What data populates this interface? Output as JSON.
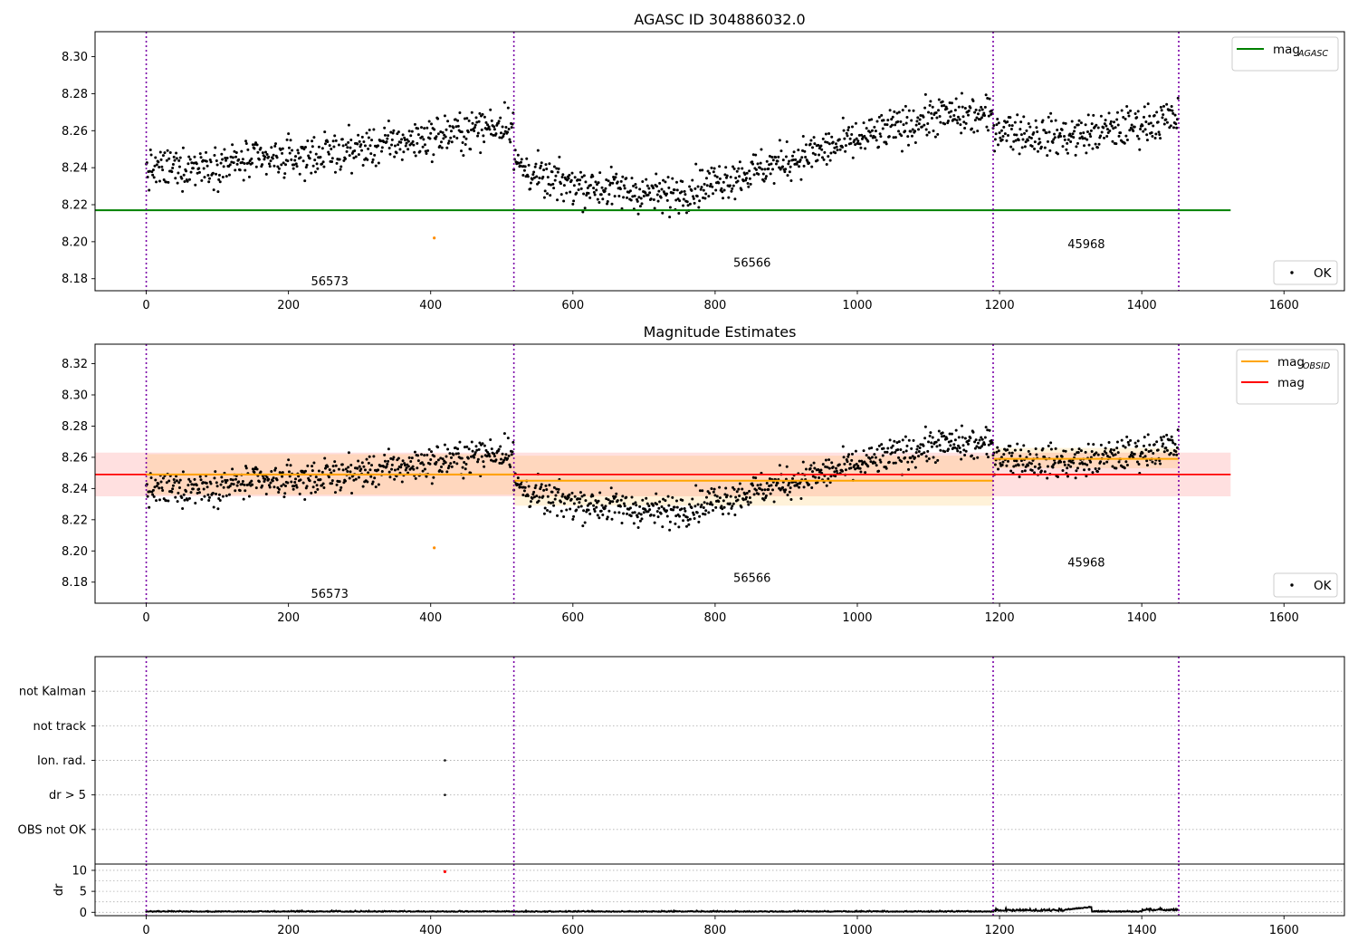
{
  "chart_data": [
    {
      "id": "top",
      "type": "scatter",
      "title": "AGASC ID 304886032.0",
      "xlabel": "",
      "ylabel": "",
      "xlim": [
        -72,
        1685
      ],
      "ylim": [
        8.1735,
        8.3135
      ],
      "x_ticks": [
        0,
        200,
        400,
        600,
        800,
        1000,
        1200,
        1400,
        1600
      ],
      "y_ticks": [
        8.18,
        8.2,
        8.22,
        8.24,
        8.26,
        8.28,
        8.3
      ],
      "obsid_boundaries": [
        0,
        517,
        1191,
        1452
      ],
      "obsid_labels": [
        {
          "text": "56573",
          "x": 258,
          "y": 8.179
        },
        {
          "text": "56566",
          "x": 852,
          "y": 8.189
        },
        {
          "text": "45968",
          "x": 1322,
          "y": 8.199
        }
      ],
      "lines": [
        {
          "name": "mag",
          "subscript": "AGASC",
          "color": "#008000",
          "x": [
            -72,
            1525
          ],
          "y": [
            8.217,
            8.217
          ]
        }
      ],
      "highlight_points": [
        {
          "x": 405,
          "y": 8.202,
          "color": "#ff8c00"
        }
      ],
      "scatter_series": {
        "name": "OK",
        "color": "#000000",
        "points_generated_from": "magnitude_profile",
        "n_points": 1452
      },
      "legend_upper": {
        "position": "upper right",
        "entries": [
          {
            "label": "mag",
            "subscript": "AGASC",
            "color": "#008000"
          }
        ]
      },
      "legend_lower": {
        "position": "lower right",
        "entries": [
          {
            "label": "OK",
            "color": "#000000"
          }
        ]
      }
    },
    {
      "id": "middle",
      "type": "scatter",
      "title": "Magnitude Estimates",
      "xlabel": "",
      "ylabel": "",
      "xlim": [
        -72,
        1685
      ],
      "ylim": [
        8.1665,
        8.3325
      ],
      "x_ticks": [
        0,
        200,
        400,
        600,
        800,
        1000,
        1200,
        1400,
        1600
      ],
      "y_ticks": [
        8.18,
        8.2,
        8.22,
        8.24,
        8.26,
        8.28,
        8.3,
        8.32
      ],
      "obsid_boundaries": [
        0,
        517,
        1191,
        1452
      ],
      "obsid_labels": [
        {
          "text": "56573",
          "x": 258,
          "y": 8.173
        },
        {
          "text": "56566",
          "x": 852,
          "y": 8.183
        },
        {
          "text": "45968",
          "x": 1322,
          "y": 8.193
        }
      ],
      "bands": [
        {
          "name": "mag",
          "x": [
            -72,
            1525
          ],
          "y_low": 8.235,
          "y_high": 8.263,
          "color": "#ff0000",
          "opacity": 0.12
        },
        {
          "name": "mag_obsid_1",
          "x": [
            0,
            517
          ],
          "y_low": 8.236,
          "y_high": 8.262,
          "color": "#ffa500",
          "opacity": 0.15
        },
        {
          "name": "mag_obsid_2",
          "x": [
            517,
            1191
          ],
          "y_low": 8.229,
          "y_high": 8.261,
          "color": "#ffa500",
          "opacity": 0.15
        },
        {
          "name": "mag_obsid_3",
          "x": [
            1191,
            1452
          ],
          "y_low": 8.253,
          "y_high": 8.266,
          "color": "#ffa500",
          "opacity": 0.15
        }
      ],
      "lines": [
        {
          "name": "mag",
          "color": "#ff0000",
          "x": [
            -72,
            1525
          ],
          "y": [
            8.249,
            8.249
          ]
        },
        {
          "name": "mag_obsid_1",
          "color": "#ffa500",
          "x": [
            0,
            517
          ],
          "y": [
            8.249,
            8.249
          ]
        },
        {
          "name": "mag_obsid_2",
          "color": "#ffa500",
          "x": [
            517,
            1191
          ],
          "y": [
            8.245,
            8.245
          ]
        },
        {
          "name": "mag_obsid_3",
          "color": "#ffa500",
          "x": [
            1191,
            1452
          ],
          "y": [
            8.259,
            8.259
          ]
        }
      ],
      "highlight_points": [
        {
          "x": 405,
          "y": 8.202,
          "color": "#ff8c00"
        }
      ],
      "scatter_series": {
        "name": "OK",
        "color": "#000000",
        "points_generated_from": "magnitude_profile",
        "n_points": 1452
      },
      "legend_upper": {
        "position": "upper right",
        "entries": [
          {
            "label": "mag",
            "subscript": "OBSID",
            "color": "#ffa500"
          },
          {
            "label": "mag",
            "subscript": "",
            "color": "#ff0000"
          }
        ]
      },
      "legend_lower": {
        "position": "lower right",
        "entries": [
          {
            "label": "OK",
            "color": "#000000"
          }
        ]
      }
    },
    {
      "id": "flags",
      "type": "scatter",
      "title": "",
      "xlim": [
        -72,
        1685
      ],
      "categories": [
        "not Kalman",
        "not track",
        "Ion. rad.",
        "dr > 5",
        "OBS not OK"
      ],
      "obsid_boundaries": [
        0,
        517,
        1191,
        1452
      ],
      "points": [
        {
          "x": 420,
          "category": "Ion. rad."
        },
        {
          "x": 420,
          "category": "dr > 5"
        }
      ]
    },
    {
      "id": "dr",
      "type": "line",
      "title": "",
      "xlabel": "",
      "ylabel": "dr",
      "xlim": [
        -72,
        1685
      ],
      "ylim": [
        -0.8,
        11.5
      ],
      "x_ticks": [
        0,
        200,
        400,
        600,
        800,
        1000,
        1200,
        1400,
        1600
      ],
      "y_ticks": [
        0,
        5,
        10
      ],
      "obsid_boundaries": [
        0,
        517,
        1191,
        1452
      ],
      "highlight_points": [
        {
          "x": 420,
          "y": 9.7,
          "color": "#ff0000"
        }
      ],
      "series_generated_from": "dr_profile"
    }
  ],
  "colors": {
    "boundary": "#7b00a8",
    "grid": "#b0b0b0",
    "ok_points": "#000000",
    "mag_agasc": "#008000",
    "mag_obsid": "#ffa500",
    "mag": "#ff0000",
    "outlier": "#ff8c00",
    "dr_flag": "#ff0000"
  }
}
